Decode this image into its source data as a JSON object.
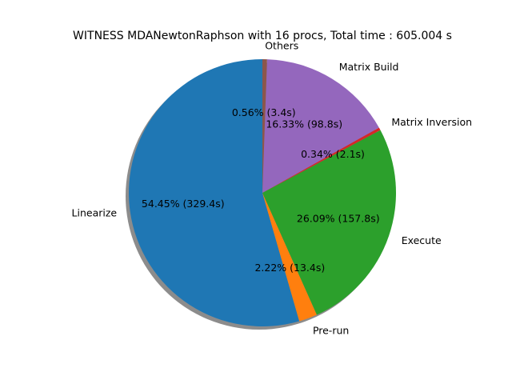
{
  "chart_data": {
    "type": "pie",
    "title": "WITNESS MDANewtonRaphson with 16 procs, Total time : 605.004 s",
    "start_angle_deg": 90,
    "direction": "counterclockwise",
    "shadow": true,
    "slices": [
      {
        "label": "Linearize",
        "percent": 54.45,
        "seconds": 329.4,
        "pct_text": "54.45%  (329.4s)",
        "color": "#1f77b4"
      },
      {
        "label": "Pre-run",
        "percent": 2.22,
        "seconds": 13.4,
        "pct_text": "2.22%  (13.4s)",
        "color": "#ff7f0e"
      },
      {
        "label": "Execute",
        "percent": 26.09,
        "seconds": 157.8,
        "pct_text": "26.09%  (157.8s)",
        "color": "#2ca02c"
      },
      {
        "label": "Matrix Inversion",
        "percent": 0.34,
        "seconds": 2.1,
        "pct_text": "0.34%  (2.1s)",
        "color": "#d62728"
      },
      {
        "label": "Matrix Build",
        "percent": 16.33,
        "seconds": 98.8,
        "pct_text": "16.33%  (98.8s)",
        "color": "#9467bd"
      },
      {
        "label": "Others",
        "percent": 0.56,
        "seconds": 3.4,
        "pct_text": "0.56%  (3.4s)",
        "color": "#8c564b"
      }
    ]
  }
}
